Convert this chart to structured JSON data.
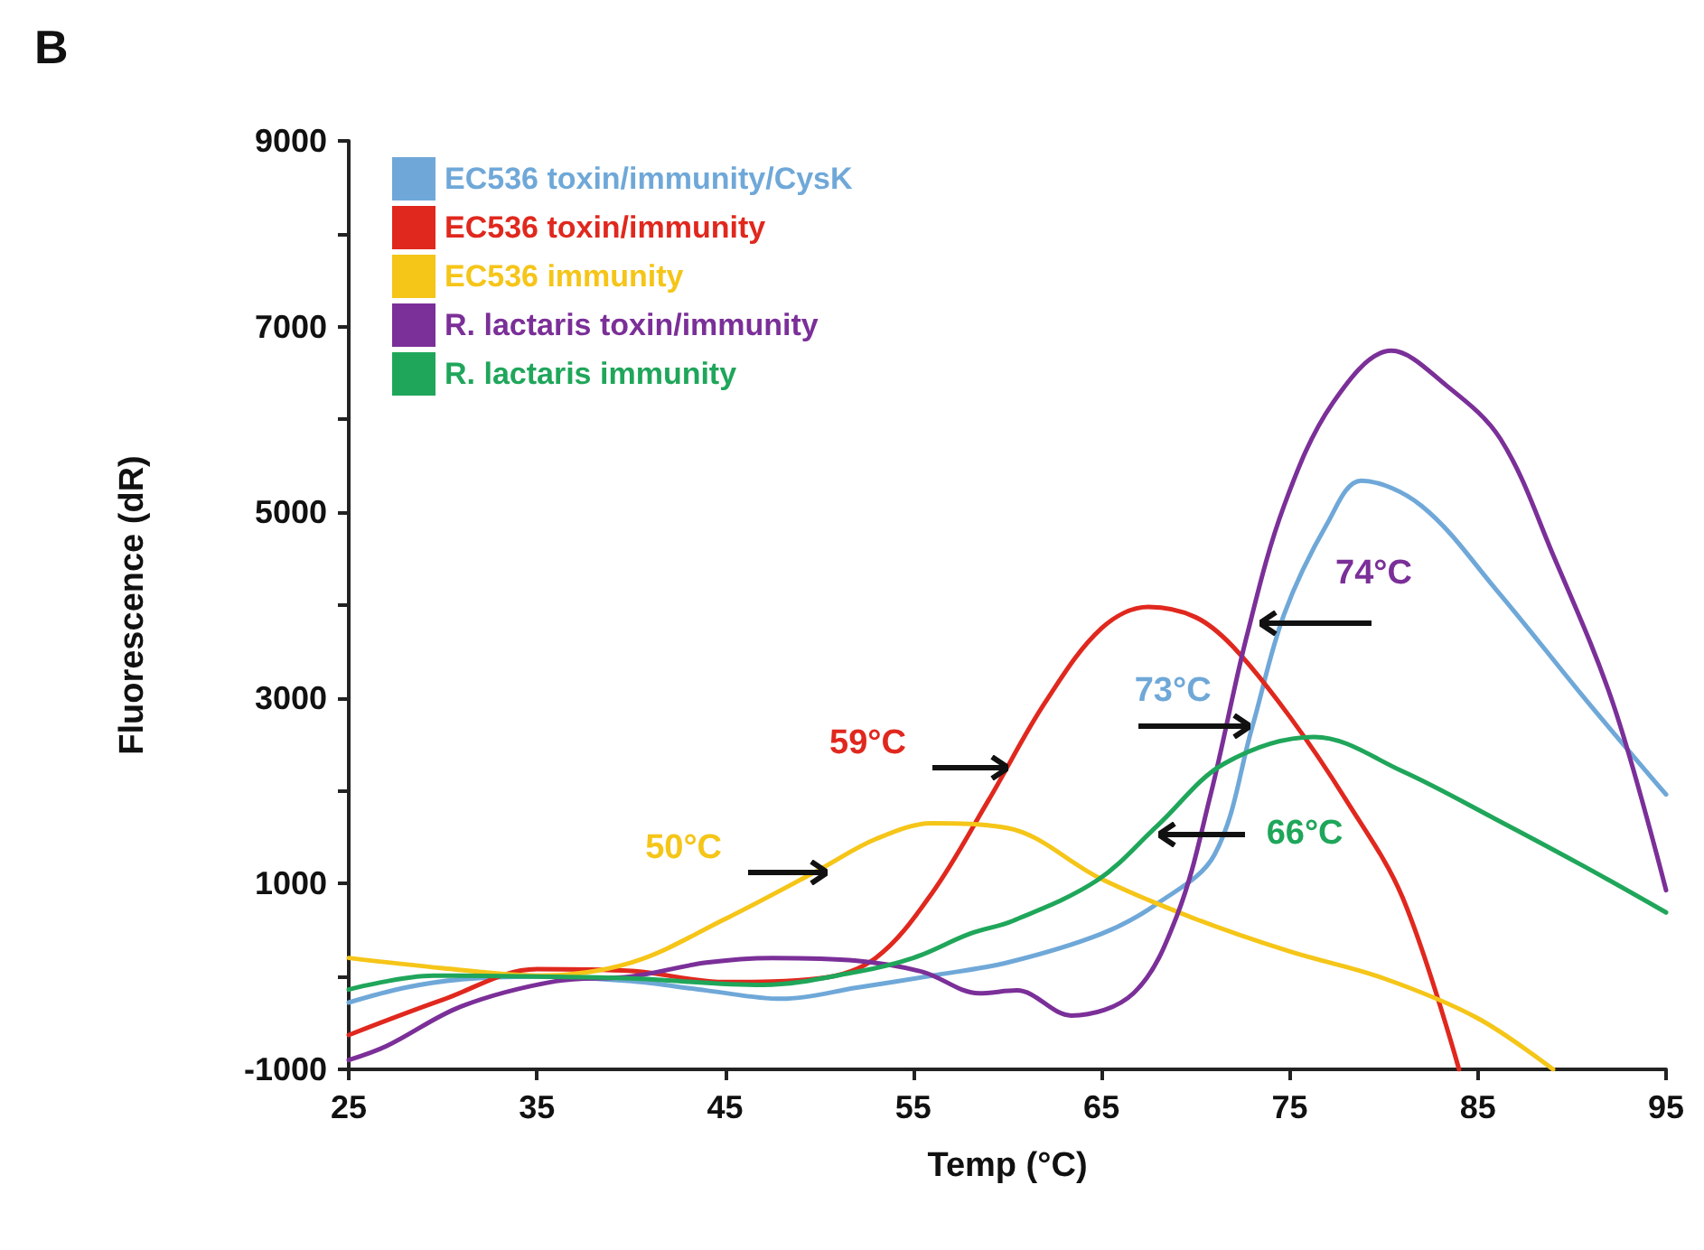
{
  "chart_data": {
    "type": "line",
    "title": "B",
    "xlabel": "Temp (°C)",
    "ylabel": "Fluorescence (dR)",
    "xlim": [
      25,
      95
    ],
    "xticks": [
      25,
      35,
      45,
      55,
      65,
      75,
      85,
      95
    ],
    "ylim": [
      -1000,
      9000
    ],
    "yticks": [
      -1000,
      {
        "value": 0,
        "label": null
      },
      1000,
      {
        "value": 2000,
        "label": null
      },
      3000,
      {
        "value": 4000,
        "label": null
      },
      5000,
      {
        "value": 6000,
        "label": null
      },
      7000,
      {
        "value": 8000,
        "label": null
      },
      9000
    ],
    "grid": false,
    "legend": "top left",
    "marker": "none",
    "line_style": "solid",
    "series": [
      {
        "name": "EC536 toxin/immunity/CysK",
        "color": "#6fa8d8",
        "x": [
          25,
          28,
          31,
          35,
          40,
          44,
          48,
          52,
          56,
          60,
          65,
          68,
          71,
          73,
          74.7,
          77,
          78.8,
          82,
          86,
          90.7,
          95
        ],
        "values": [
          -280,
          -120,
          -30,
          0,
          -50,
          -150,
          -240,
          -120,
          10,
          150,
          460,
          790,
          1310,
          2680,
          3900,
          4880,
          5340,
          5070,
          4160,
          2990,
          1960
        ]
      },
      {
        "name": "EC536 toxin/immunity",
        "color": "#e0281e",
        "x": [
          25,
          30,
          35,
          40,
          45,
          50,
          53,
          56,
          59,
          62,
          65,
          67.5,
          70,
          72,
          75,
          78,
          81,
          84
        ],
        "values": [
          -630,
          -250,
          80,
          60,
          -60,
          -20,
          200,
          900,
          1900,
          2950,
          3750,
          3980,
          3870,
          3550,
          2800,
          1900,
          850,
          -1000
        ]
      },
      {
        "name": "EC536 immunity",
        "color": "#f5c518",
        "x": [
          25,
          30,
          35,
          40,
          45,
          50,
          53,
          56,
          60,
          65,
          70,
          75,
          80,
          85,
          89
        ],
        "values": [
          200,
          90,
          10,
          150,
          620,
          1150,
          1480,
          1650,
          1600,
          1050,
          620,
          270,
          -20,
          -450,
          -1000
        ]
      },
      {
        "name": "R. lactaris toxin/immunity",
        "color": "#7b2f98",
        "x": [
          25,
          27,
          31,
          36,
          40,
          44,
          47.5,
          52,
          55.5,
          58.5,
          60.5,
          63.4,
          66.7,
          69,
          70.8,
          72.7,
          74.7,
          77.3,
          80.4,
          83.3,
          86.2,
          89,
          92.2,
          95
        ],
        "values": [
          -900,
          -750,
          -320,
          -50,
          0,
          150,
          200,
          170,
          50,
          -180,
          -150,
          -420,
          -180,
          650,
          1960,
          3650,
          5070,
          6180,
          6740,
          6370,
          5790,
          4540,
          2930,
          930
        ]
      },
      {
        "name": "R. lactaris immunity",
        "color": "#1fa65a",
        "x": [
          25,
          29.5,
          35,
          40,
          47,
          52,
          55,
          58,
          60.3,
          64.8,
          68,
          71.5,
          76.3,
          81,
          85.9,
          90.7,
          95
        ],
        "values": [
          -140,
          10,
          0,
          -20,
          -90,
          50,
          200,
          460,
          600,
          1040,
          1630,
          2290,
          2580,
          2210,
          1700,
          1180,
          690
        ]
      }
    ],
    "annotations": [
      {
        "text": "50°C",
        "x": 50.4,
        "y": 1120
      },
      {
        "text": "59°C",
        "x": 60,
        "y": 2250
      },
      {
        "text": "73°C",
        "x": 72.9,
        "y": 2700
      },
      {
        "text": "74°C",
        "x": 73.4,
        "y": 3800
      },
      {
        "text": "66°C",
        "x": 68,
        "y": 1530
      }
    ]
  }
}
